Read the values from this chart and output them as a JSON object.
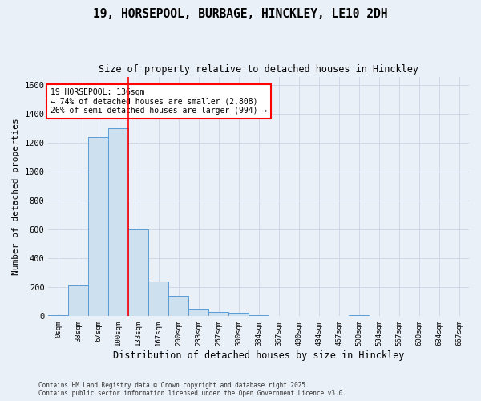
{
  "title_line1": "19, HORSEPOOL, BURBAGE, HINCKLEY, LE10 2DH",
  "title_line2": "Size of property relative to detached houses in Hinckley",
  "xlabel": "Distribution of detached houses by size in Hinckley",
  "ylabel": "Number of detached properties",
  "bar_labels": [
    "0sqm",
    "33sqm",
    "67sqm",
    "100sqm",
    "133sqm",
    "167sqm",
    "200sqm",
    "233sqm",
    "267sqm",
    "300sqm",
    "334sqm",
    "367sqm",
    "400sqm",
    "434sqm",
    "467sqm",
    "500sqm",
    "534sqm",
    "567sqm",
    "600sqm",
    "634sqm",
    "667sqm"
  ],
  "bar_values": [
    10,
    220,
    1240,
    1300,
    600,
    240,
    140,
    50,
    28,
    25,
    8,
    0,
    0,
    0,
    0,
    10,
    0,
    0,
    0,
    0,
    0
  ],
  "bar_color": "#cce0f0",
  "bar_edge_color": "#5b9bd5",
  "grid_color": "#d0d8e8",
  "background_color": "#eaf0f8",
  "vline_x": 4.0,
  "vline_color": "red",
  "annotation_text": "19 HORSEPOOL: 136sqm\n← 74% of detached houses are smaller (2,808)\n26% of semi-detached houses are larger (994) →",
  "annotation_box_color": "white",
  "annotation_box_edge": "red",
  "ylim": [
    0,
    1660
  ],
  "yticks": [
    0,
    200,
    400,
    600,
    800,
    1000,
    1200,
    1400,
    1600
  ],
  "footnote_line1": "Contains HM Land Registry data © Crown copyright and database right 2025.",
  "footnote_line2": "Contains public sector information licensed under the Open Government Licence v3.0."
}
